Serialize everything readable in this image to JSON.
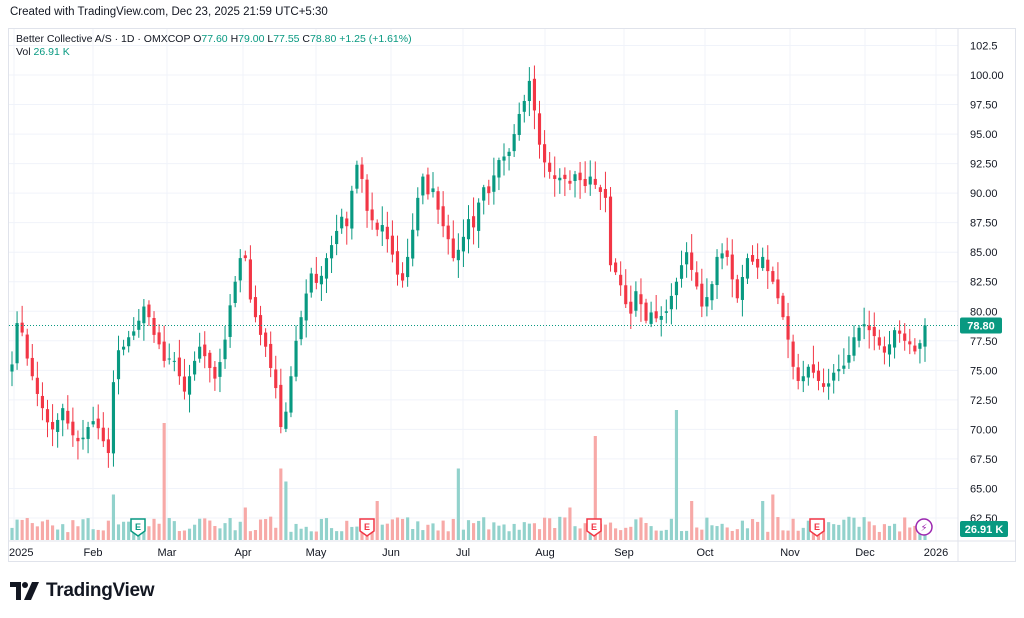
{
  "header": {
    "created_text": "Created with TradingView.com, Dec 23, 2025 21:59 UTC+5:30"
  },
  "legend": {
    "symbol": "Better Collective A/S · 1D · OMXCOP",
    "o_label": "O",
    "o_value": "77.60",
    "h_label": "H",
    "h_value": "79.00",
    "l_label": "L",
    "l_value": "77.55",
    "c_label": "C",
    "c_value": "78.80",
    "change": "+1.25 (+1.61%)",
    "vol_label": "Vol",
    "vol_value": "26.91 K"
  },
  "price_badge": "78.80",
  "volume_badge": "26.91 K",
  "brand": {
    "name": "TradingView"
  },
  "colors": {
    "up": "#089981",
    "down": "#f23645",
    "up_vol": "#92d2cc",
    "down_vol": "#f7a9a7",
    "accent": "#089981",
    "event": "#f23645",
    "dividend": "#089981",
    "flash": "#9c27b0"
  },
  "events": [
    {
      "type": "dividend",
      "label": "E",
      "date": "2025-02-20"
    },
    {
      "type": "earnings",
      "label": "E",
      "date": "2025-05-21"
    },
    {
      "type": "earnings",
      "label": "E",
      "date": "2025-08-20"
    },
    {
      "type": "earnings",
      "label": "E",
      "date": "2025-11-13"
    },
    {
      "type": "flash",
      "label": "⚡",
      "date": "2025-12-22"
    }
  ],
  "chart_data": {
    "type": "candlestick",
    "x_tick_labels": [
      "2025",
      "Feb",
      "Mar",
      "Apr",
      "May",
      "Jun",
      "Jul",
      "Aug",
      "Sep",
      "Oct",
      "Nov",
      "Dec",
      "2026"
    ],
    "y_tick_labels": [
      "102.5",
      "100.00",
      "97.50",
      "95.00",
      "92.50",
      "90.00",
      "87.50",
      "85.00",
      "82.50",
      "80.00",
      "77.50",
      "75.00",
      "72.50",
      "70.00",
      "67.50",
      "65.00",
      "62.50"
    ],
    "ylim": [
      61.5,
      104
    ],
    "last_close": 78.8,
    "grid": true,
    "closes": [
      75.5,
      79,
      78.2,
      76,
      74.5,
      73,
      71.8,
      70.6,
      70,
      70.8,
      71.8,
      70.5,
      69.5,
      69,
      69.3,
      70.2,
      70.7,
      70.1,
      69,
      68,
      74,
      76.7,
      77,
      77.8,
      78.3,
      79.2,
      80.4,
      79.5,
      78,
      77.2,
      75.8,
      76,
      75.8,
      74.5,
      73.2,
      74.5,
      75.8,
      77,
      76.2,
      75.2,
      74.3,
      75.7,
      77.6,
      80.5,
      82.5,
      84.5,
      84.5,
      81,
      79.5,
      78,
      77,
      75.2,
      73.5,
      70.2,
      71.5,
      74.5,
      77.5,
      79.5,
      81.5,
      83.2,
      82.4,
      83,
      84.5,
      85.6,
      86.8,
      88,
      87.2,
      90.2,
      92.4,
      91.2,
      88.5,
      87.7,
      86.9,
      87.3,
      86.1,
      84.8,
      83.1,
      82.6,
      84.6,
      86.9,
      89.6,
      91.4,
      89.9,
      90.4,
      88.6,
      87.2,
      86.1,
      84.5,
      85.2,
      86.3,
      87.8,
      87.1,
      89.2,
      90.5,
      90,
      91.5,
      92.8,
      93.1,
      93.5,
      95,
      96.7,
      97.8,
      99.5,
      97,
      94.1,
      92.6,
      91.8,
      91.2,
      91.3,
      91.2,
      90.8,
      91.6,
      91.1,
      90.6,
      91.4,
      90.7,
      90.1,
      89.6,
      83.9,
      83.3,
      82.2,
      80.6,
      79.8,
      81.7,
      80.6,
      79.2,
      79.9,
      79.4,
      79.6,
      80,
      81.3,
      82.5,
      83.9,
      85,
      83.5,
      82.1,
      80.4,
      81.2,
      82.3,
      84.6,
      84.9,
      84.6,
      82.7,
      81.1,
      82.9,
      84.5,
      84.2,
      83.7,
      84.6,
      83.4,
      82.5,
      81.1,
      79.5,
      77.6,
      75.3,
      74.1,
      74.5,
      75.3,
      74.8,
      74.1,
      73.6,
      73.9,
      74.8,
      75.1,
      75.4,
      76.3,
      77.8,
      78.6,
      78.9,
      78.4,
      77.9,
      77.1,
      76.5,
      77.2,
      78.4,
      78.1,
      77.5,
      77.2,
      76.6,
      77.3,
      78.8
    ],
    "volume_scale": "relative"
  }
}
